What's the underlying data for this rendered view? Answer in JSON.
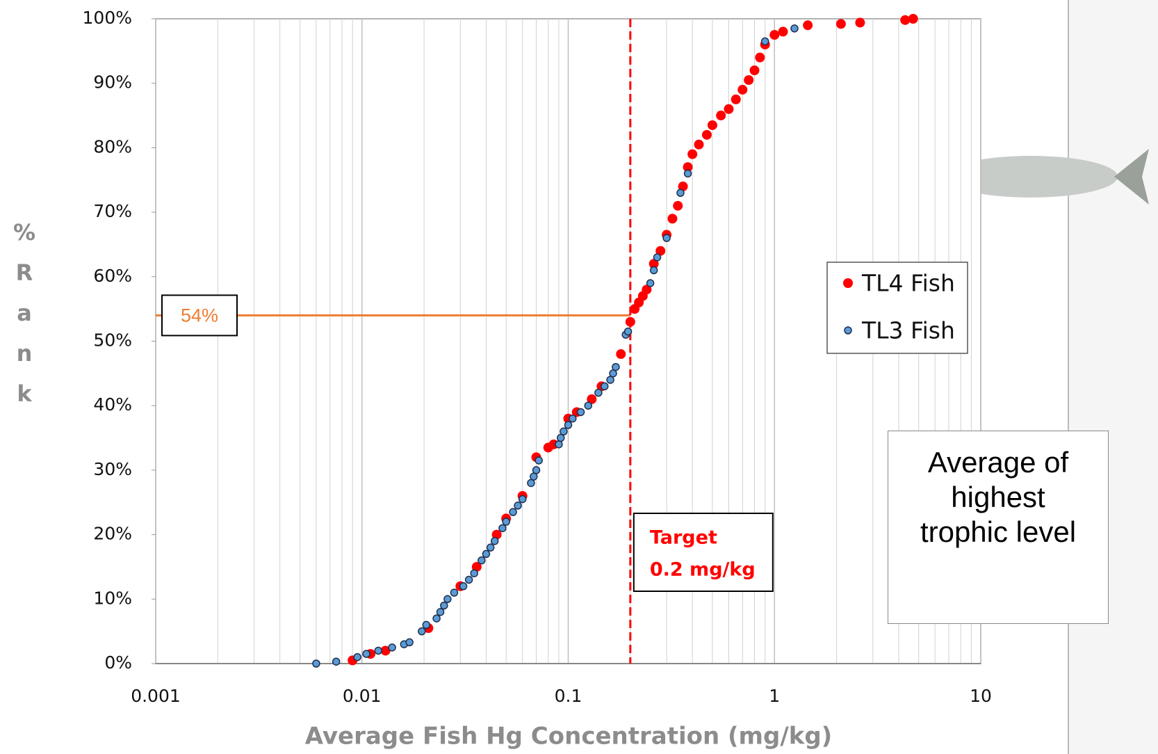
{
  "chart_data": {
    "type": "scatter",
    "xlabel": "Average Fish Hg Concentration (mg/kg)",
    "ylabel": "%Rank",
    "xscale": "log",
    "xlim": [
      0.001,
      10
    ],
    "xticks": [
      0.001,
      0.01,
      0.1,
      1,
      10
    ],
    "x_minor_grid": [
      0.002,
      0.003,
      0.004,
      0.005,
      0.006,
      0.007,
      0.008,
      0.009,
      0.02,
      0.03,
      0.04,
      0.05,
      0.06,
      0.07,
      0.08,
      0.09,
      0.2,
      0.3,
      0.4,
      0.5,
      0.6,
      0.7,
      0.8,
      0.9,
      2,
      3,
      4,
      5,
      6,
      7,
      8,
      9
    ],
    "ylim": [
      0,
      100
    ],
    "yticks": [
      {
        "value": 0,
        "label": "0%"
      },
      {
        "value": 10,
        "label": "10%"
      },
      {
        "value": 20,
        "label": "20%"
      },
      {
        "value": 30,
        "label": "30%"
      },
      {
        "value": 40,
        "label": "40%"
      },
      {
        "value": 50,
        "label": "50%"
      },
      {
        "value": 60,
        "label": "60%"
      },
      {
        "value": 70,
        "label": "70%"
      },
      {
        "value": 80,
        "label": "80%"
      },
      {
        "value": 90,
        "label": "90%"
      },
      {
        "value": 100,
        "label": "100%"
      }
    ],
    "grid": true,
    "legend": "right",
    "hline": {
      "value": 54,
      "label": "54%",
      "color": "#ed7d31"
    },
    "vline": {
      "value": 0.2,
      "label": [
        "Target",
        "0.2 mg/kg"
      ],
      "color": "#ff0000"
    },
    "side_note": "Average of highest trophic level",
    "series": [
      {
        "name": "TL4 Fish",
        "color": "#ff0000",
        "x": [
          0.009,
          0.011,
          0.013,
          0.021,
          0.03,
          0.036,
          0.045,
          0.05,
          0.06,
          0.07,
          0.08,
          0.085,
          0.1,
          0.11,
          0.13,
          0.145,
          0.18,
          0.2,
          0.21,
          0.22,
          0.23,
          0.24,
          0.26,
          0.28,
          0.3,
          0.32,
          0.34,
          0.36,
          0.38,
          0.4,
          0.43,
          0.47,
          0.5,
          0.55,
          0.6,
          0.65,
          0.7,
          0.75,
          0.8,
          0.85,
          0.9,
          1.0,
          1.1,
          1.45,
          2.1,
          2.6,
          4.3,
          4.7
        ],
        "values": [
          0.5,
          1.5,
          2,
          5.5,
          12,
          15,
          20,
          22.5,
          26,
          32,
          33.5,
          34,
          38,
          39,
          41,
          43,
          48,
          53,
          55,
          56,
          57,
          58,
          62,
          64,
          66.5,
          69,
          71,
          74,
          77,
          79,
          80.5,
          82,
          83.5,
          85,
          86,
          87.5,
          89,
          90.5,
          92,
          94,
          96,
          97.5,
          98,
          99,
          99.2,
          99.4,
          99.8,
          100
        ]
      },
      {
        "name": "TL3 Fish",
        "color": "#5b9bd5",
        "x": [
          0.006,
          0.0075,
          0.0095,
          0.0105,
          0.012,
          0.014,
          0.016,
          0.017,
          0.0195,
          0.0205,
          0.023,
          0.024,
          0.025,
          0.026,
          0.028,
          0.031,
          0.033,
          0.035,
          0.038,
          0.04,
          0.042,
          0.044,
          0.048,
          0.05,
          0.054,
          0.057,
          0.06,
          0.066,
          0.068,
          0.07,
          0.072,
          0.09,
          0.092,
          0.095,
          0.1,
          0.105,
          0.115,
          0.125,
          0.14,
          0.15,
          0.16,
          0.165,
          0.17,
          0.19,
          0.195,
          0.25,
          0.26,
          0.27,
          0.3,
          0.35,
          0.38,
          0.9,
          1.25
        ],
        "values": [
          0,
          0.3,
          1,
          1.5,
          2,
          2.5,
          3,
          3.3,
          5,
          6,
          7,
          8,
          9,
          10,
          11,
          12,
          13,
          14,
          16,
          17,
          18,
          19,
          21,
          22,
          23.5,
          24.5,
          25.5,
          28,
          29,
          30,
          31.5,
          34,
          35,
          36,
          37,
          38,
          39,
          40,
          42,
          43,
          44,
          45,
          46,
          51,
          51.5,
          59,
          61,
          63,
          66,
          73,
          76,
          96.5,
          98.5
        ]
      }
    ]
  }
}
